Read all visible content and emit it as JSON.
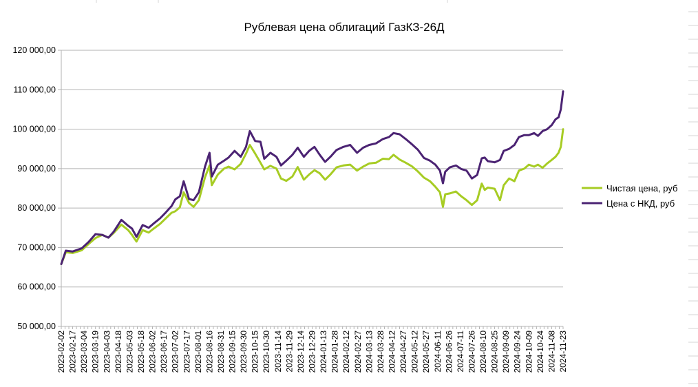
{
  "chart_data": {
    "type": "line",
    "title": "Рублевая цена облигаций ГазКЗ-26Д",
    "ylim": [
      50000,
      120000
    ],
    "yticks": [
      50000,
      60000,
      70000,
      80000,
      90000,
      100000,
      110000,
      120000
    ],
    "ytick_labels": [
      "50 000,00",
      "60 000,00",
      "70 000,00",
      "80 000,00",
      "90 000,00",
      "100 000,00",
      "110 000,00",
      "120 000,00"
    ],
    "xlim": [
      "2023-02-02",
      "2024-11-23"
    ],
    "x_tick_labels": [
      "2023-02-02",
      "2023-02-17",
      "2023-03-04",
      "2023-03-19",
      "2023-04-03",
      "2023-04-18",
      "2023-05-03",
      "2023-05-18",
      "2023-06-02",
      "2023-06-17",
      "2023-07-02",
      "2023-07-17",
      "2023-08-01",
      "2023-08-16",
      "2023-08-31",
      "2023-09-15",
      "2023-09-30",
      "2023-10-15",
      "2023-10-30",
      "2023-11-14",
      "2023-11-29",
      "2023-12-14",
      "2023-12-29",
      "2024-01-13",
      "2024-01-28",
      "2024-02-12",
      "2024-02-27",
      "2024-03-13",
      "2024-03-28",
      "2024-04-12",
      "2024-04-27",
      "2024-05-12",
      "2024-05-27",
      "2024-06-11",
      "2024-06-26",
      "2024-07-11",
      "2024-07-26",
      "2024-08-10",
      "2024-08-25",
      "2024-09-09",
      "2024-09-24",
      "2024-10-09",
      "2024-10-24",
      "2024-11-08",
      "2024-11-23"
    ],
    "grid": true,
    "legend": "right",
    "series": [
      {
        "name": "Чистая цена, руб",
        "color": "#a7cc24",
        "x": [
          "2023-02-02",
          "2023-02-08",
          "2023-02-17",
          "2023-03-01",
          "2023-03-10",
          "2023-03-19",
          "2023-03-28",
          "2023-04-05",
          "2023-04-12",
          "2023-04-22",
          "2023-05-01",
          "2023-05-06",
          "2023-05-12",
          "2023-05-20",
          "2023-05-28",
          "2023-06-03",
          "2023-06-12",
          "2023-06-20",
          "2023-06-27",
          "2023-07-02",
          "2023-07-08",
          "2023-07-13",
          "2023-07-20",
          "2023-07-26",
          "2023-08-02",
          "2023-08-10",
          "2023-08-16",
          "2023-08-19",
          "2023-08-27",
          "2023-09-04",
          "2023-09-10",
          "2023-09-18",
          "2023-09-26",
          "2023-10-03",
          "2023-10-08",
          "2023-10-15",
          "2023-10-22",
          "2023-10-27",
          "2023-11-04",
          "2023-11-12",
          "2023-11-18",
          "2023-11-25",
          "2023-12-03",
          "2023-12-10",
          "2023-12-18",
          "2023-12-25",
          "2024-01-01",
          "2024-01-08",
          "2024-01-15",
          "2024-01-22",
          "2024-01-30",
          "2024-02-08",
          "2024-02-17",
          "2024-02-26",
          "2024-03-05",
          "2024-03-13",
          "2024-03-22",
          "2024-03-31",
          "2024-04-08",
          "2024-04-14",
          "2024-04-22",
          "2024-04-30",
          "2024-05-08",
          "2024-05-16",
          "2024-05-24",
          "2024-06-01",
          "2024-06-08",
          "2024-06-14",
          "2024-06-18",
          "2024-06-21",
          "2024-06-27",
          "2024-07-05",
          "2024-07-12",
          "2024-07-19",
          "2024-07-26",
          "2024-08-02",
          "2024-08-08",
          "2024-08-12",
          "2024-08-16",
          "2024-08-25",
          "2024-09-01",
          "2024-09-06",
          "2024-09-13",
          "2024-09-20",
          "2024-09-26",
          "2024-10-03",
          "2024-10-09",
          "2024-10-16",
          "2024-10-21",
          "2024-10-27",
          "2024-11-02",
          "2024-11-08",
          "2024-11-13",
          "2024-11-17",
          "2024-11-20",
          "2024-11-23"
        ],
        "values": [
          65800,
          68800,
          68600,
          69300,
          70900,
          72400,
          73200,
          72500,
          73700,
          75800,
          74400,
          73200,
          71500,
          74400,
          73800,
          74700,
          76000,
          77500,
          78800,
          79200,
          80200,
          84000,
          81300,
          80300,
          82000,
          87800,
          90800,
          85800,
          88500,
          90000,
          90500,
          89800,
          91200,
          93800,
          96000,
          93800,
          91500,
          89800,
          90700,
          90000,
          87500,
          86900,
          88000,
          90400,
          87200,
          88500,
          89600,
          88800,
          87200,
          88500,
          90300,
          90800,
          91000,
          89500,
          90500,
          91300,
          91500,
          92500,
          92400,
          93500,
          92300,
          91500,
          90600,
          89300,
          87700,
          86800,
          85400,
          84000,
          80300,
          83500,
          83700,
          84200,
          83000,
          82000,
          80800,
          82000,
          86200,
          84600,
          85200,
          84900,
          82000,
          85800,
          87500,
          86800,
          89500,
          90000,
          91000,
          90500,
          91000,
          90200,
          91300,
          92200,
          93000,
          94000,
          95500,
          100000
        ]
      },
      {
        "name": "Цена с НКД, руб",
        "color": "#4b2373",
        "x": [
          "2023-02-02",
          "2023-02-08",
          "2023-02-17",
          "2023-03-01",
          "2023-03-10",
          "2023-03-19",
          "2023-03-28",
          "2023-04-05",
          "2023-04-12",
          "2023-04-22",
          "2023-05-01",
          "2023-05-06",
          "2023-05-12",
          "2023-05-20",
          "2023-05-28",
          "2023-06-03",
          "2023-06-12",
          "2023-06-20",
          "2023-06-27",
          "2023-07-02",
          "2023-07-08",
          "2023-07-13",
          "2023-07-20",
          "2023-07-26",
          "2023-08-02",
          "2023-08-10",
          "2023-08-16",
          "2023-08-19",
          "2023-08-27",
          "2023-09-04",
          "2023-09-10",
          "2023-09-18",
          "2023-09-26",
          "2023-10-03",
          "2023-10-08",
          "2023-10-15",
          "2023-10-22",
          "2023-10-27",
          "2023-11-04",
          "2023-11-12",
          "2023-11-18",
          "2023-11-25",
          "2023-12-03",
          "2023-12-10",
          "2023-12-18",
          "2023-12-25",
          "2024-01-01",
          "2024-01-08",
          "2024-01-15",
          "2024-01-22",
          "2024-01-30",
          "2024-02-08",
          "2024-02-17",
          "2024-02-26",
          "2024-03-05",
          "2024-03-13",
          "2024-03-22",
          "2024-03-31",
          "2024-04-08",
          "2024-04-14",
          "2024-04-22",
          "2024-04-30",
          "2024-05-08",
          "2024-05-16",
          "2024-05-24",
          "2024-06-01",
          "2024-06-08",
          "2024-06-14",
          "2024-06-18",
          "2024-06-21",
          "2024-06-27",
          "2024-07-05",
          "2024-07-12",
          "2024-07-19",
          "2024-07-26",
          "2024-08-02",
          "2024-08-08",
          "2024-08-12",
          "2024-08-16",
          "2024-08-25",
          "2024-09-01",
          "2024-09-06",
          "2024-09-13",
          "2024-09-20",
          "2024-09-26",
          "2024-10-03",
          "2024-10-09",
          "2024-10-16",
          "2024-10-21",
          "2024-10-27",
          "2024-11-02",
          "2024-11-08",
          "2024-11-13",
          "2024-11-17",
          "2024-11-20",
          "2024-11-23"
        ],
        "values": [
          65800,
          69200,
          69000,
          69800,
          71400,
          73400,
          73200,
          72500,
          74000,
          77000,
          75500,
          74800,
          72700,
          75700,
          75000,
          76000,
          77400,
          79000,
          80500,
          82200,
          83000,
          86800,
          82300,
          82000,
          84000,
          90500,
          94000,
          88000,
          91000,
          92000,
          92800,
          94500,
          93000,
          95500,
          99500,
          97000,
          96800,
          92500,
          94000,
          93000,
          90800,
          92000,
          93500,
          95300,
          93000,
          94500,
          95500,
          93500,
          91700,
          93000,
          94700,
          95500,
          96000,
          94000,
          95300,
          96000,
          96400,
          97500,
          98000,
          99000,
          98700,
          97500,
          96200,
          94800,
          92700,
          92000,
          91000,
          89500,
          86300,
          89200,
          90300,
          90800,
          89900,
          89500,
          87500,
          88400,
          92600,
          92800,
          91900,
          91600,
          92200,
          94500,
          95000,
          96000,
          98000,
          98500,
          98500,
          99000,
          98300,
          99500,
          100000,
          101000,
          102500,
          103000,
          105000,
          109600
        ]
      }
    ]
  }
}
